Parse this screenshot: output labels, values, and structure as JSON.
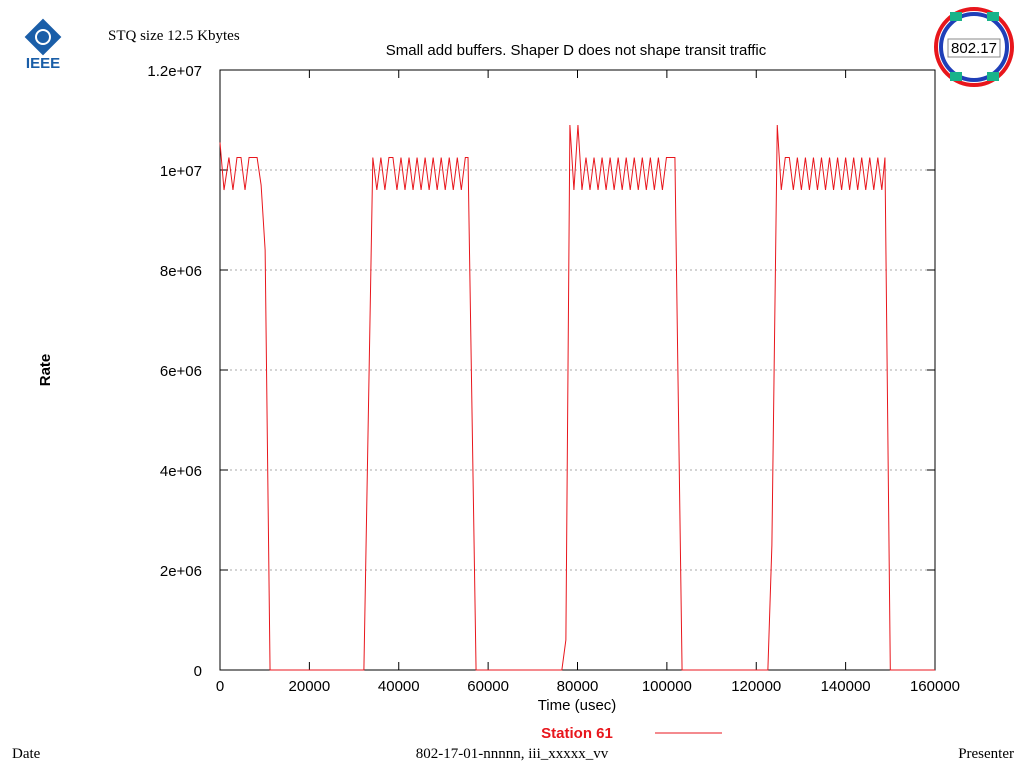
{
  "slide": {
    "title": "STQ size 12.5 Kbytes",
    "footer_left": "Date",
    "footer_center": "802-17-01-nnnnn, iii_xxxxx_vv",
    "footer_right": "Presenter",
    "logo_left": "IEEE",
    "logo_right": "802.17"
  },
  "chart_data": {
    "type": "line",
    "title": "Small add buffers. Shaper D does not shape transit traffic",
    "x_label": "Time (usec)",
    "y_label": "Rate",
    "xlim": [
      0,
      160000
    ],
    "xticks": [
      0,
      20000,
      40000,
      60000,
      80000,
      100000,
      120000,
      140000,
      160000
    ],
    "ylim": [
      0,
      12000000
    ],
    "yticks": [
      0,
      {
        "value": 2000000,
        "label": "2e+06"
      },
      {
        "value": 4000000,
        "label": "4e+06"
      },
      {
        "value": 6000000,
        "label": "6e+06"
      },
      {
        "value": 8000000,
        "label": "8e+06"
      },
      {
        "value": 10000000,
        "label": "1e+07"
      },
      {
        "value": 12000000,
        "label": "1.2e+07"
      }
    ],
    "grid": true,
    "x": [
      0,
      900,
      2000,
      2900,
      3800,
      4700,
      5600,
      6500,
      7400,
      8300,
      9200,
      10100,
      11200,
      32200,
      34200,
      35100,
      36000,
      36900,
      37800,
      38700,
      39600,
      40500,
      41400,
      42300,
      43200,
      44100,
      45000,
      45900,
      46800,
      47700,
      48600,
      49500,
      50400,
      51300,
      52200,
      53100,
      54000,
      54900,
      55500,
      57300,
      76500,
      77400,
      78300,
      79200,
      80100,
      81000,
      81900,
      82800,
      83700,
      84600,
      85500,
      86400,
      87300,
      88200,
      89100,
      90000,
      90900,
      91800,
      92700,
      93600,
      94500,
      95400,
      96300,
      97200,
      98100,
      99000,
      99900,
      101800,
      103400,
      122600,
      123500,
      124700,
      125600,
      126500,
      127400,
      128300,
      129200,
      130100,
      131000,
      131900,
      132800,
      133700,
      134600,
      135500,
      136400,
      137300,
      138200,
      139100,
      140000,
      140900,
      141800,
      142700,
      143600,
      144500,
      145400,
      146300,
      147200,
      148100,
      148800,
      150000,
      160000
    ],
    "series": [
      {
        "name": "Station 61",
        "color": "#e8161c",
        "values": [
          10550000,
          9600000,
          10250000,
          9600000,
          10250000,
          10250000,
          9600000,
          10250000,
          10250000,
          10250000,
          9700000,
          8400000,
          0,
          0,
          10250000,
          9600000,
          10250000,
          9600000,
          10250000,
          10250000,
          9600000,
          10250000,
          9600000,
          10250000,
          9600000,
          10250000,
          9600000,
          10250000,
          9600000,
          10250000,
          9600000,
          10250000,
          9600000,
          10250000,
          9600000,
          10250000,
          9600000,
          10250000,
          10250000,
          0,
          0,
          600000,
          10900000,
          9600000,
          10900000,
          9600000,
          10250000,
          9600000,
          10250000,
          9600000,
          10250000,
          9600000,
          10250000,
          9600000,
          10250000,
          9600000,
          10250000,
          9600000,
          10250000,
          9600000,
          10250000,
          9600000,
          10250000,
          9600000,
          10250000,
          9600000,
          10250000,
          10250000,
          0,
          0,
          2500000,
          10900000,
          9600000,
          10250000,
          10250000,
          9600000,
          10250000,
          9600000,
          10250000,
          9600000,
          10250000,
          9600000,
          10250000,
          9600000,
          10250000,
          9600000,
          10250000,
          9600000,
          10250000,
          9600000,
          10250000,
          9600000,
          10250000,
          9600000,
          10250000,
          9600000,
          10250000,
          9600000,
          10250000,
          0,
          0
        ]
      }
    ]
  }
}
